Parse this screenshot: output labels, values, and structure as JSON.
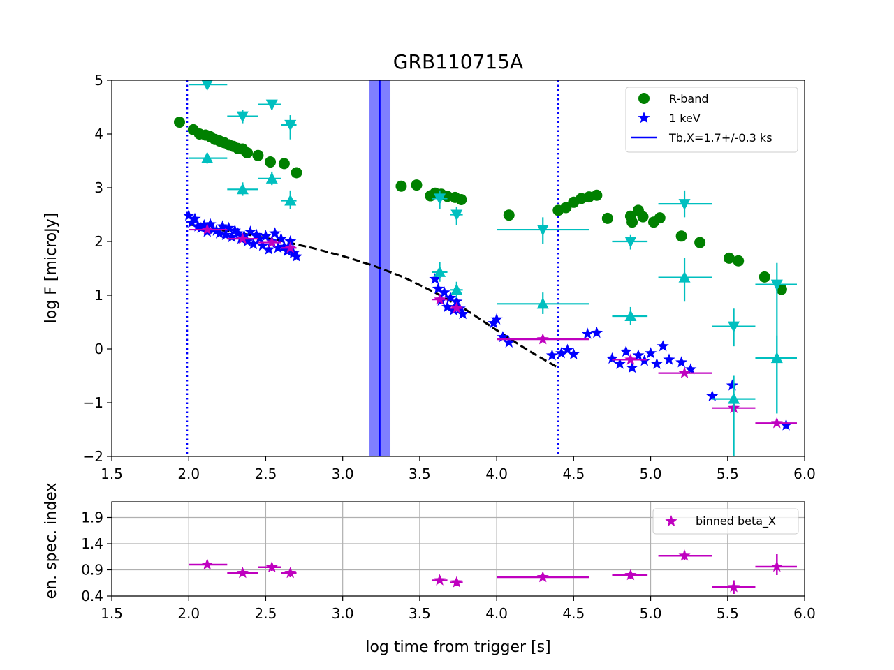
{
  "colors": {
    "rband": "#008000",
    "xray": "#0000ff",
    "binned": "#bf00bf",
    "uvot": "#00bfbf",
    "break_band": "#7f7fff",
    "fit": "#000000",
    "grid": "#b0b0b0"
  },
  "chart_data": [
    {
      "type": "scatter",
      "title": "GRB110715A",
      "xlabel": "",
      "ylabel": "log F [microJy]",
      "xlim": [
        1.5,
        6.0
      ],
      "ylim": [
        -2,
        5
      ],
      "xticks": [
        "1.5",
        "2.0",
        "2.5",
        "3.0",
        "3.5",
        "4.0",
        "4.5",
        "5.0",
        "5.5",
        "6.0"
      ],
      "yticks": [
        "−2",
        "−1",
        "0",
        "1",
        "2",
        "3",
        "4",
        "5"
      ],
      "grid": false,
      "legend_position": "upper-right",
      "legend": [
        "R-band",
        "1 keV",
        "Tb,X=1.7+/-0.3 ks"
      ],
      "vertical_lines": {
        "break_x": 3.24,
        "break_band": [
          3.17,
          3.31
        ],
        "dotted_x": [
          1.99,
          4.4
        ]
      },
      "fit_curve": {
        "x": [
          2.0,
          2.2,
          2.4,
          2.6,
          2.8,
          3.0,
          3.2,
          3.4,
          3.6,
          3.8,
          4.0,
          4.2,
          4.4
        ],
        "y": [
          2.32,
          2.22,
          2.12,
          2.01,
          1.88,
          1.73,
          1.55,
          1.33,
          1.05,
          0.73,
          0.35,
          -0.02,
          -0.35
        ]
      },
      "series": [
        {
          "name": "R-band",
          "marker": "circle",
          "x": [
            1.94,
            2.03,
            2.07,
            2.11,
            2.14,
            2.17,
            2.2,
            2.23,
            2.26,
            2.29,
            2.32,
            2.35,
            2.38,
            2.45,
            2.53,
            2.62,
            2.7,
            3.38,
            3.48,
            3.57,
            3.6,
            3.64,
            3.68,
            3.73,
            3.77,
            4.08,
            4.4,
            4.45,
            4.5,
            4.55,
            4.6,
            4.65,
            4.72,
            4.87,
            4.88,
            4.92,
            4.95,
            5.02,
            5.06,
            5.2,
            5.32,
            5.51,
            5.57,
            5.74,
            5.85
          ],
          "y": [
            4.22,
            4.08,
            4.0,
            3.98,
            3.95,
            3.9,
            3.87,
            3.84,
            3.8,
            3.77,
            3.73,
            3.72,
            3.65,
            3.6,
            3.48,
            3.45,
            3.28,
            3.03,
            3.05,
            2.85,
            2.9,
            2.88,
            2.84,
            2.82,
            2.78,
            2.49,
            2.58,
            2.63,
            2.73,
            2.8,
            2.83,
            2.86,
            2.43,
            2.47,
            2.36,
            2.58,
            2.46,
            2.36,
            2.44,
            2.1,
            1.98,
            1.69,
            1.64,
            1.34,
            1.11
          ]
        },
        {
          "name": "1 keV",
          "marker": "star",
          "x": [
            2.0,
            2.02,
            2.04,
            2.06,
            2.08,
            2.1,
            2.12,
            2.14,
            2.16,
            2.18,
            2.2,
            2.22,
            2.24,
            2.26,
            2.28,
            2.3,
            2.32,
            2.34,
            2.36,
            2.38,
            2.4,
            2.42,
            2.44,
            2.46,
            2.48,
            2.5,
            2.52,
            2.54,
            2.56,
            2.58,
            2.6,
            2.62,
            2.64,
            2.66,
            2.68,
            2.7,
            3.6,
            3.62,
            3.64,
            3.66,
            3.68,
            3.7,
            3.72,
            3.74,
            3.76,
            3.78,
            3.98,
            4.0,
            4.04,
            4.08,
            4.36,
            4.42,
            4.46,
            4.5,
            4.59,
            4.65,
            4.75,
            4.8,
            4.84,
            4.88,
            4.92,
            4.96,
            5.0,
            5.04,
            5.08,
            5.12,
            5.2,
            5.26,
            5.4,
            5.53,
            5.88
          ],
          "y": [
            2.48,
            2.35,
            2.42,
            2.28,
            2.25,
            2.3,
            2.18,
            2.32,
            2.22,
            2.2,
            2.15,
            2.28,
            2.12,
            2.25,
            2.08,
            2.2,
            2.15,
            2.05,
            2.1,
            2.0,
            2.18,
            1.95,
            2.12,
            2.05,
            1.92,
            2.1,
            1.85,
            2.0,
            2.15,
            1.88,
            2.05,
            1.9,
            1.82,
            2.0,
            1.78,
            1.72,
            1.3,
            1.12,
            0.9,
            1.05,
            0.78,
            0.95,
            0.72,
            0.88,
            0.75,
            0.65,
            0.48,
            0.55,
            0.22,
            0.12,
            -0.12,
            -0.08,
            -0.02,
            -0.1,
            0.28,
            0.3,
            -0.18,
            -0.28,
            -0.05,
            -0.35,
            -0.12,
            -0.22,
            -0.08,
            -0.28,
            0.05,
            -0.2,
            -0.25,
            -0.38,
            -0.88,
            -0.68,
            -1.42
          ]
        },
        {
          "name": "",
          "marker": "star",
          "x": [
            2.12,
            2.35,
            2.54,
            2.66,
            3.63,
            3.74,
            4.3,
            4.87,
            5.22,
            5.54,
            5.82
          ],
          "y": [
            2.22,
            2.05,
            1.98,
            1.88,
            0.92,
            0.76,
            0.18,
            -0.2,
            -0.45,
            -1.1,
            -1.38
          ],
          "xerr": [
            [
              2.0,
              2.25
            ],
            [
              2.25,
              2.45
            ],
            [
              2.45,
              2.6
            ],
            [
              2.6,
              2.7
            ],
            [
              3.58,
              3.68
            ],
            [
              3.7,
              3.78
            ],
            [
              4.0,
              4.6
            ],
            [
              4.75,
              4.98
            ],
            [
              5.05,
              5.4
            ],
            [
              5.4,
              5.68
            ],
            [
              5.68,
              5.95
            ]
          ]
        },
        {
          "name": "",
          "marker": "triangle-up",
          "x": [
            2.12,
            2.35,
            2.54,
            2.66,
            3.63,
            3.74,
            4.3,
            4.87,
            5.22,
            5.54,
            5.82
          ],
          "y": [
            3.55,
            2.97,
            3.17,
            2.76,
            1.43,
            1.1,
            0.84,
            0.61,
            1.33,
            -0.93,
            -0.17
          ],
          "xerr": [
            [
              2.0,
              2.25
            ],
            [
              2.25,
              2.45
            ],
            [
              2.45,
              2.6
            ],
            [
              2.6,
              2.7
            ],
            [
              3.58,
              3.68
            ],
            [
              3.7,
              3.78
            ],
            [
              4.0,
              4.6
            ],
            [
              4.75,
              4.98
            ],
            [
              5.05,
              5.4
            ],
            [
              5.4,
              5.68
            ],
            [
              5.68,
              5.95
            ]
          ],
          "yerr": [
            [
              3.45,
              3.65
            ],
            [
              2.85,
              3.1
            ],
            [
              3.05,
              3.3
            ],
            [
              2.6,
              2.95
            ],
            [
              1.25,
              1.62
            ],
            [
              0.95,
              1.25
            ],
            [
              0.65,
              1.05
            ],
            [
              0.45,
              0.78
            ],
            [
              0.88,
              1.7
            ],
            [
              -2.0,
              -0.5
            ],
            [
              -1.2,
              0.25
            ]
          ]
        },
        {
          "name": "",
          "marker": "triangle-down",
          "x": [
            2.12,
            2.35,
            2.54,
            2.66,
            3.63,
            3.74,
            4.3,
            4.87,
            5.22,
            5.54,
            5.82
          ],
          "y": [
            4.92,
            4.33,
            4.55,
            4.17,
            2.8,
            2.5,
            2.22,
            2.0,
            2.7,
            0.42,
            1.2
          ],
          "xerr": [
            [
              2.0,
              2.25
            ],
            [
              2.25,
              2.45
            ],
            [
              2.45,
              2.6
            ],
            [
              2.6,
              2.7
            ],
            [
              3.58,
              3.68
            ],
            [
              3.7,
              3.78
            ],
            [
              4.0,
              4.6
            ],
            [
              4.75,
              4.98
            ],
            [
              5.05,
              5.4
            ],
            [
              5.4,
              5.68
            ],
            [
              5.68,
              5.95
            ]
          ],
          "yerr": [
            [
              4.85,
              5.0
            ],
            [
              4.2,
              4.45
            ],
            [
              4.45,
              4.62
            ],
            [
              3.9,
              4.35
            ],
            [
              2.6,
              2.95
            ],
            [
              2.3,
              2.65
            ],
            [
              1.95,
              2.45
            ],
            [
              1.85,
              2.12
            ],
            [
              2.45,
              2.95
            ],
            [
              0.05,
              0.75
            ],
            [
              -1.2,
              1.6
            ]
          ]
        }
      ]
    },
    {
      "type": "scatter",
      "title": "",
      "xlabel": "log time from trigger [s]",
      "ylabel": "en. spec. index",
      "xlim": [
        1.5,
        6.0
      ],
      "ylim": [
        0.4,
        2.2
      ],
      "xticks": [
        "1.5",
        "2.0",
        "2.5",
        "3.0",
        "3.5",
        "4.0",
        "4.5",
        "5.0",
        "5.5",
        "6.0"
      ],
      "yticks": [
        "0.4",
        "0.9",
        "1.4",
        "1.9"
      ],
      "grid": true,
      "legend_position": "upper-right",
      "legend": [
        "binned beta_X"
      ],
      "series": [
        {
          "name": "binned beta_X",
          "marker": "star",
          "x": [
            2.12,
            2.35,
            2.54,
            2.66,
            3.63,
            3.74,
            4.3,
            4.87,
            5.22,
            5.54,
            5.82
          ],
          "y": [
            1.0,
            0.84,
            0.95,
            0.84,
            0.7,
            0.66,
            0.76,
            0.8,
            1.17,
            0.57,
            0.96
          ],
          "xerr": [
            [
              2.0,
              2.25
            ],
            [
              2.25,
              2.45
            ],
            [
              2.45,
              2.6
            ],
            [
              2.6,
              2.7
            ],
            [
              3.58,
              3.68
            ],
            [
              3.7,
              3.78
            ],
            [
              4.0,
              4.6
            ],
            [
              4.75,
              4.98
            ],
            [
              5.05,
              5.4
            ],
            [
              5.4,
              5.68
            ],
            [
              5.68,
              5.95
            ]
          ],
          "yerr": [
            [
              0.95,
              1.05
            ],
            [
              0.79,
              0.89
            ],
            [
              0.88,
              1.02
            ],
            [
              0.76,
              0.92
            ],
            [
              0.64,
              0.76
            ],
            [
              0.6,
              0.72
            ],
            [
              0.71,
              0.81
            ],
            [
              0.73,
              0.87
            ],
            [
              1.08,
              1.26
            ],
            [
              0.44,
              0.7
            ],
            [
              0.8,
              1.2
            ]
          ]
        }
      ]
    }
  ]
}
